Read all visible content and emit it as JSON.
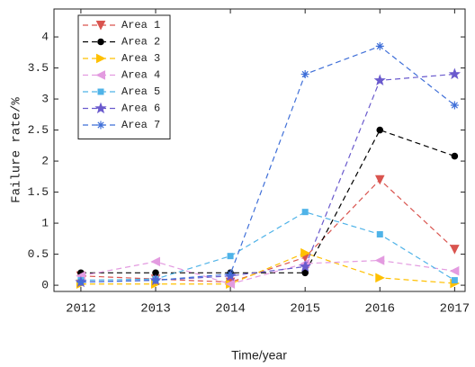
{
  "chart_data": {
    "type": "line",
    "x_label": "Time/year",
    "y_label": "Failure rate/%",
    "x": [
      2012,
      2013,
      2014,
      2015,
      2016,
      2017
    ],
    "xlim": [
      2011.64,
      2017.14
    ],
    "xticks": [
      2012,
      2013,
      2014,
      2015,
      2016,
      2017
    ],
    "ylim": [
      -0.1,
      4.45
    ],
    "yticks": [
      0,
      0.5,
      1,
      1.5,
      2,
      2.5,
      3,
      3.5,
      4
    ],
    "legend": "upper left",
    "series": [
      {
        "name": "Area 1",
        "color": "#d9544f",
        "marker": "triangle-down",
        "values": [
          0.15,
          0.1,
          0.05,
          0.45,
          1.7,
          0.58
        ]
      },
      {
        "name": "Area 2",
        "color": "#000000",
        "marker": "circle",
        "values": [
          0.2,
          0.2,
          0.2,
          0.2,
          2.5,
          2.08
        ]
      },
      {
        "name": "Area 3",
        "color": "#ffc000",
        "marker": "triangle-right",
        "values": [
          0.02,
          0.02,
          0.02,
          0.52,
          0.12,
          0.03
        ]
      },
      {
        "name": "Area 4",
        "color": "#e39be0",
        "marker": "triangle-left",
        "values": [
          0.15,
          0.38,
          0.02,
          0.35,
          0.4,
          0.23
        ]
      },
      {
        "name": "Area 5",
        "color": "#4fb3e8",
        "marker": "square",
        "values": [
          0.08,
          0.1,
          0.47,
          1.18,
          0.82,
          0.08
        ]
      },
      {
        "name": "Area 6",
        "color": "#6a5acd",
        "marker": "star",
        "values": [
          0.05,
          0.08,
          0.15,
          0.3,
          3.3,
          3.4
        ]
      },
      {
        "name": "Area 7",
        "color": "#3f6fd8",
        "marker": "asterisk",
        "values": [
          0.05,
          0.08,
          0.18,
          3.4,
          3.85,
          2.9
        ]
      }
    ]
  }
}
